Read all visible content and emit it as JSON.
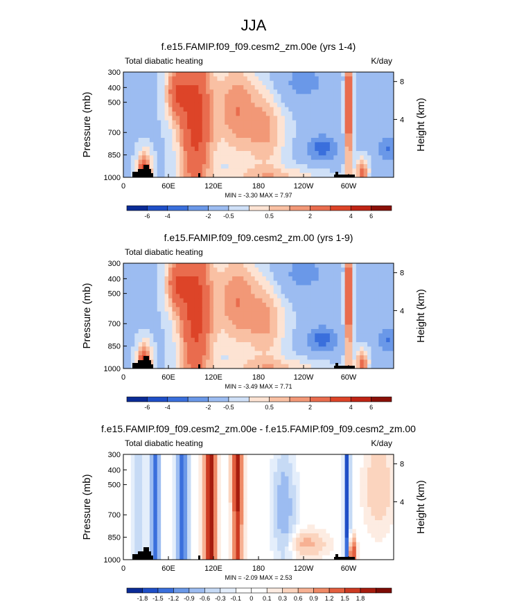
{
  "main_title": "JJA",
  "palettes": {
    "full": [
      "#0a2b96",
      "#1f4fc7",
      "#3a6fdc",
      "#6a98e8",
      "#9cbcf1",
      "#cfe0f7",
      "#fde3d3",
      "#f9c0a3",
      "#f29877",
      "#e96c4e",
      "#dd4428",
      "#bf2415",
      "#8a1008"
    ],
    "diff": [
      "#0a2b96",
      "#1f4fc7",
      "#3a6fdc",
      "#6a98e8",
      "#9cbcf1",
      "#c6daf5",
      "#e4eefb",
      "#ffffff",
      "#ffffff",
      "#fdece2",
      "#fbd4be",
      "#f7b193",
      "#ef8a66",
      "#e35f3f",
      "#cc3a22",
      "#a61c0e",
      "#7d0b05"
    ]
  },
  "chart_data": [
    {
      "type": "heatmap",
      "title": "f.e15.FAMIP.f09_f09.cesm2_zm.00e (yrs 1-4)",
      "left_string": "Total diabatic heating",
      "right_string": "K/day",
      "ylabel": "Pressure (mb)",
      "ylabel_right": "Height (km)",
      "x_ticks": [
        "0",
        "60E",
        "120E",
        "180",
        "120W",
        "60W"
      ],
      "xlim": [
        0,
        360
      ],
      "y_ticks": [
        "300",
        "400",
        "500",
        "700",
        "850",
        "1000"
      ],
      "y_ticks_right": [
        "8",
        "4"
      ],
      "min_max": "MIN = -3.30  MAX =  7.97",
      "colorbar_labels": [
        "-6",
        "-4",
        "-2",
        "-0.5",
        "0.5",
        "2",
        "4",
        "6"
      ],
      "palette": "full"
    },
    {
      "type": "heatmap",
      "title": "f.e15.FAMIP.f09_f09.cesm2_zm.00 (yrs 1-9)",
      "left_string": "Total diabatic heating",
      "right_string": "",
      "ylabel": "Pressure (mb)",
      "ylabel_right": "Height (km)",
      "x_ticks": [
        "0",
        "60E",
        "120E",
        "180",
        "120W",
        "60W"
      ],
      "xlim": [
        0,
        360
      ],
      "y_ticks": [
        "300",
        "400",
        "500",
        "700",
        "850",
        "1000"
      ],
      "y_ticks_right": [
        "8",
        "4"
      ],
      "min_max": "MIN = -3.49  MAX =  7.71",
      "colorbar_labels": [
        "-6",
        "-4",
        "-2",
        "-0.5",
        "0.5",
        "2",
        "4",
        "6"
      ],
      "palette": "full"
    },
    {
      "type": "heatmap",
      "title": "f.e15.FAMIP.f09_f09.cesm2_zm.00e - f.e15.FAMIP.f09_f09.cesm2_zm.00",
      "left_string": "Total diabatic heating",
      "right_string": "K/day",
      "ylabel": "Pressure (mb)",
      "ylabel_right": "Height (km)",
      "x_ticks": [
        "0",
        "60E",
        "120E",
        "180",
        "120W",
        "60W"
      ],
      "xlim": [
        0,
        360
      ],
      "y_ticks": [
        "300",
        "400",
        "500",
        "700",
        "850",
        "1000"
      ],
      "y_ticks_right": [
        "8",
        "4"
      ],
      "min_max": "MIN = -2.09  MAX =  2.53",
      "colorbar_labels": [
        "-1.8",
        "-1.5",
        "-1.2",
        "-0.9",
        "-0.6",
        "-0.3",
        "-0.1",
        "0",
        "0.1",
        "0.3",
        "0.6",
        "0.9",
        "1.2",
        "1.5",
        "1.8"
      ],
      "palette": "diff"
    }
  ]
}
